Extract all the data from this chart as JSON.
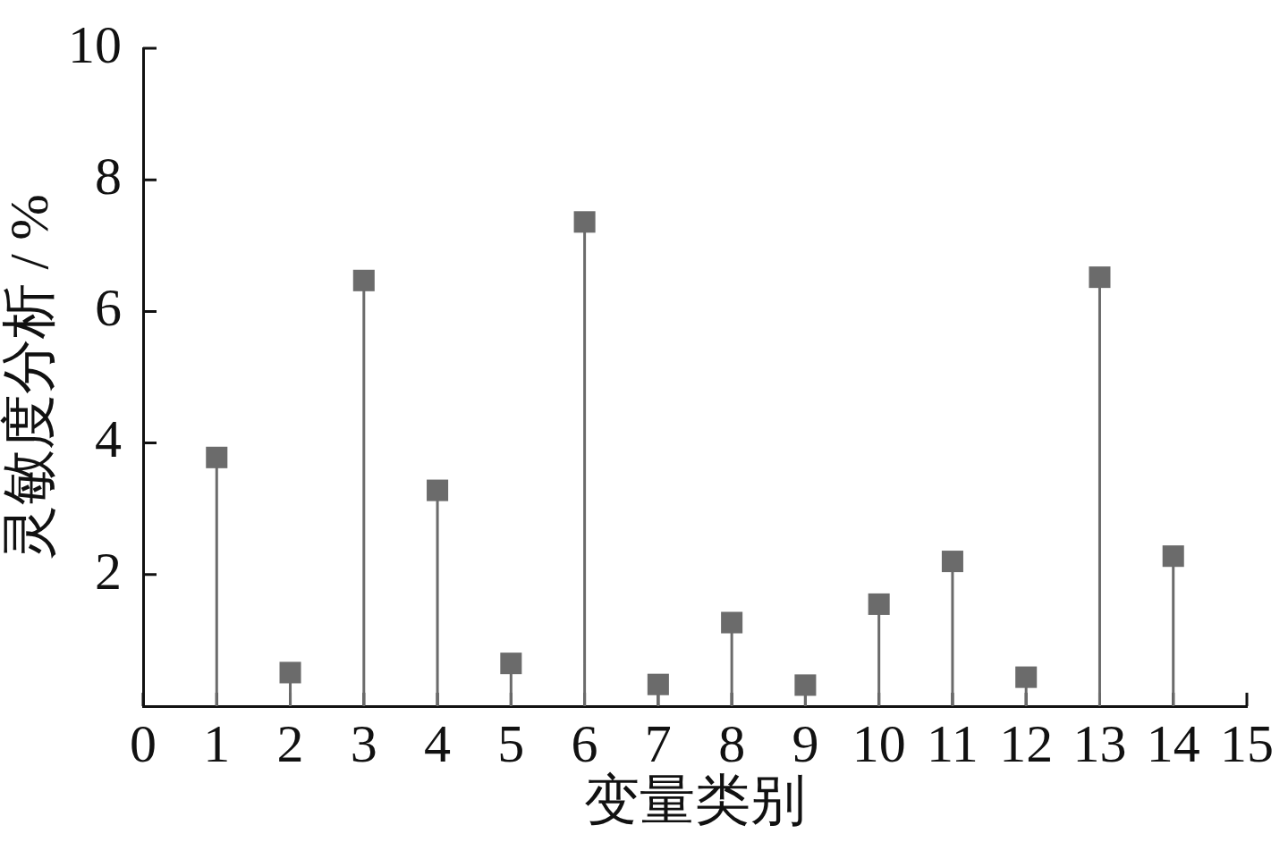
{
  "chart_data": {
    "type": "lollipop",
    "xlabel": "变量类别",
    "ylabel": "灵敏度分析 / %",
    "x": [
      1,
      2,
      3,
      4,
      5,
      6,
      7,
      8,
      9,
      10,
      11,
      12,
      13,
      14
    ],
    "values": [
      3.78,
      0.51,
      6.47,
      3.28,
      0.65,
      7.36,
      0.33,
      1.27,
      0.32,
      1.55,
      2.2,
      0.44,
      6.52,
      2.28
    ],
    "color": "#6b6b6b",
    "marker": "square",
    "xlim": [
      0,
      15
    ],
    "xticks": [
      0,
      1,
      2,
      3,
      4,
      5,
      6,
      7,
      8,
      9,
      10,
      11,
      12,
      13,
      14,
      15
    ],
    "ylim": [
      0,
      10
    ],
    "yticks": [
      2,
      4,
      6,
      8,
      10
    ]
  }
}
